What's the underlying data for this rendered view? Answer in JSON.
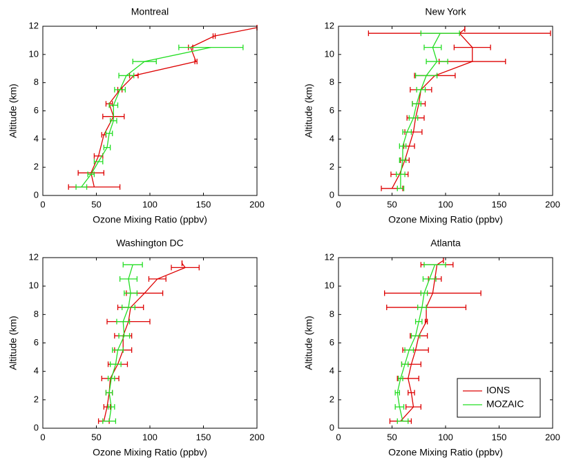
{
  "chart_data": [
    {
      "type": "line",
      "title": "Montreal",
      "xlabel": "Ozone Mixing Ratio (ppbv)",
      "ylabel": "Altitude (km)",
      "xlim": [
        0,
        200
      ],
      "ylim": [
        0,
        12
      ],
      "xticks": [
        0,
        50,
        100,
        150,
        200
      ],
      "yticks": [
        0,
        2,
        4,
        6,
        8,
        10,
        12
      ],
      "series": [
        {
          "color": "#dd0000",
          "y": [
            0.6,
            1.6,
            2.8,
            4.3,
            5.6,
            6.5,
            7.5,
            8.5,
            9.5,
            10.5,
            11.3,
            11.9
          ],
          "x": [
            48,
            45,
            52,
            57,
            66,
            62,
            72,
            85,
            143,
            138,
            160,
            200
          ],
          "xerr": [
            24,
            12,
            4,
            2,
            10,
            3,
            2,
            4,
            1,
            2,
            1,
            0
          ]
        },
        {
          "color": "#22dd22",
          "y": [
            0.6,
            1.5,
            2.4,
            3.4,
            4.4,
            5.3,
            6.4,
            7.5,
            8.5,
            9.5,
            10.5
          ],
          "x": [
            36,
            45,
            52,
            60,
            62,
            66,
            66,
            72,
            78,
            95,
            157
          ],
          "xerr": [
            5,
            3,
            4,
            3,
            3,
            3,
            4,
            5,
            7,
            11,
            30
          ]
        }
      ]
    },
    {
      "type": "line",
      "title": "New York",
      "xlabel": "Ozone Mixing Ratio (ppbv)",
      "ylabel": "Altitude (km)",
      "xlim": [
        0,
        200
      ],
      "ylim": [
        0,
        12
      ],
      "xticks": [
        0,
        50,
        100,
        150,
        200
      ],
      "yticks": [
        0,
        2,
        4,
        6,
        8,
        10,
        12
      ],
      "series": [
        {
          "color": "#dd0000",
          "y": [
            0.5,
            1.5,
            2.5,
            3.5,
            4.5,
            5.5,
            6.5,
            7.5,
            8.5,
            9.5,
            10.5,
            11.5,
            11.8
          ],
          "x": [
            50,
            57,
            62,
            66,
            70,
            72,
            75,
            77,
            90,
            125,
            125,
            113,
            118
          ],
          "xerr": [
            10,
            8,
            4,
            5,
            8,
            8,
            6,
            10,
            19,
            31,
            17,
            85,
            0
          ]
        },
        {
          "color": "#22dd22",
          "y": [
            0.5,
            1.5,
            2.5,
            3.5,
            4.5,
            5.5,
            6.5,
            7.5,
            8.5,
            9.5,
            10.5,
            11.5
          ],
          "x": [
            58,
            58,
            60,
            60,
            64,
            70,
            73,
            77,
            82,
            92,
            88,
            95
          ],
          "xerr": [
            3,
            4,
            3,
            3,
            4,
            4,
            4,
            4,
            10,
            10,
            8,
            18
          ]
        }
      ]
    },
    {
      "type": "line",
      "title": "Washington DC",
      "xlabel": "Ozone Mixing Ratio (ppbv)",
      "ylabel": "Altitude (km)",
      "xlim": [
        0,
        200
      ],
      "ylim": [
        0,
        12
      ],
      "xticks": [
        0,
        50,
        100,
        150,
        200
      ],
      "yticks": [
        0,
        2,
        4,
        6,
        8,
        10,
        12
      ],
      "series": [
        {
          "color": "#dd0000",
          "y": [
            0.5,
            1.5,
            2.5,
            3.5,
            4.5,
            5.5,
            6.5,
            7.5,
            8.5,
            9.5,
            10.5,
            11.3,
            11.6
          ],
          "x": [
            57,
            60,
            62,
            63,
            70,
            75,
            75,
            80,
            82,
            95,
            107,
            133,
            130
          ],
          "xerr": [
            5,
            3,
            3,
            8,
            9,
            8,
            8,
            20,
            12,
            17,
            8,
            13,
            0
          ]
        },
        {
          "color": "#22dd22",
          "y": [
            0.5,
            1.5,
            2.5,
            3.5,
            4.5,
            5.5,
            6.5,
            7.5,
            8.5,
            9.5,
            10.5,
            11.5
          ],
          "x": [
            62,
            64,
            62,
            64,
            68,
            70,
            76,
            75,
            80,
            82,
            80,
            84
          ],
          "xerr": [
            6,
            3,
            3,
            3,
            5,
            5,
            5,
            6,
            6,
            6,
            8,
            9
          ]
        }
      ]
    },
    {
      "type": "line",
      "title": "Atlanta",
      "xlabel": "Ozone Mixing Ratio (ppbv)",
      "ylabel": "Altitude (km)",
      "xlim": [
        0,
        200
      ],
      "ylim": [
        0,
        12
      ],
      "xticks": [
        0,
        50,
        100,
        150,
        200
      ],
      "yticks": [
        0,
        2,
        4,
        6,
        8,
        10,
        12
      ],
      "legend": "lower right",
      "series": [
        {
          "name": "IONS",
          "color": "#dd0000",
          "y": [
            0.5,
            1.5,
            2.5,
            3.5,
            4.5,
            5.5,
            6.5,
            7.5,
            8.5,
            9.5,
            10.5,
            11.5,
            11.8
          ],
          "x": [
            58,
            70,
            68,
            65,
            68,
            72,
            75,
            82,
            82,
            88,
            90,
            92,
            98
          ],
          "xerr": [
            10,
            7,
            3,
            10,
            9,
            12,
            8,
            1,
            37,
            45,
            6,
            15,
            0
          ]
        },
        {
          "name": "MOZAIC",
          "color": "#22dd22",
          "y": [
            0.5,
            1.5,
            2.5,
            3.5,
            4.5,
            5.5,
            6.5,
            7.5,
            8.5,
            9.5,
            10.5,
            11.5
          ],
          "x": [
            60,
            57,
            55,
            58,
            62,
            66,
            72,
            75,
            78,
            80,
            85,
            90
          ],
          "xerr": [
            5,
            4,
            2,
            2,
            3,
            4,
            4,
            3,
            4,
            3,
            6,
            10
          ]
        }
      ]
    }
  ]
}
